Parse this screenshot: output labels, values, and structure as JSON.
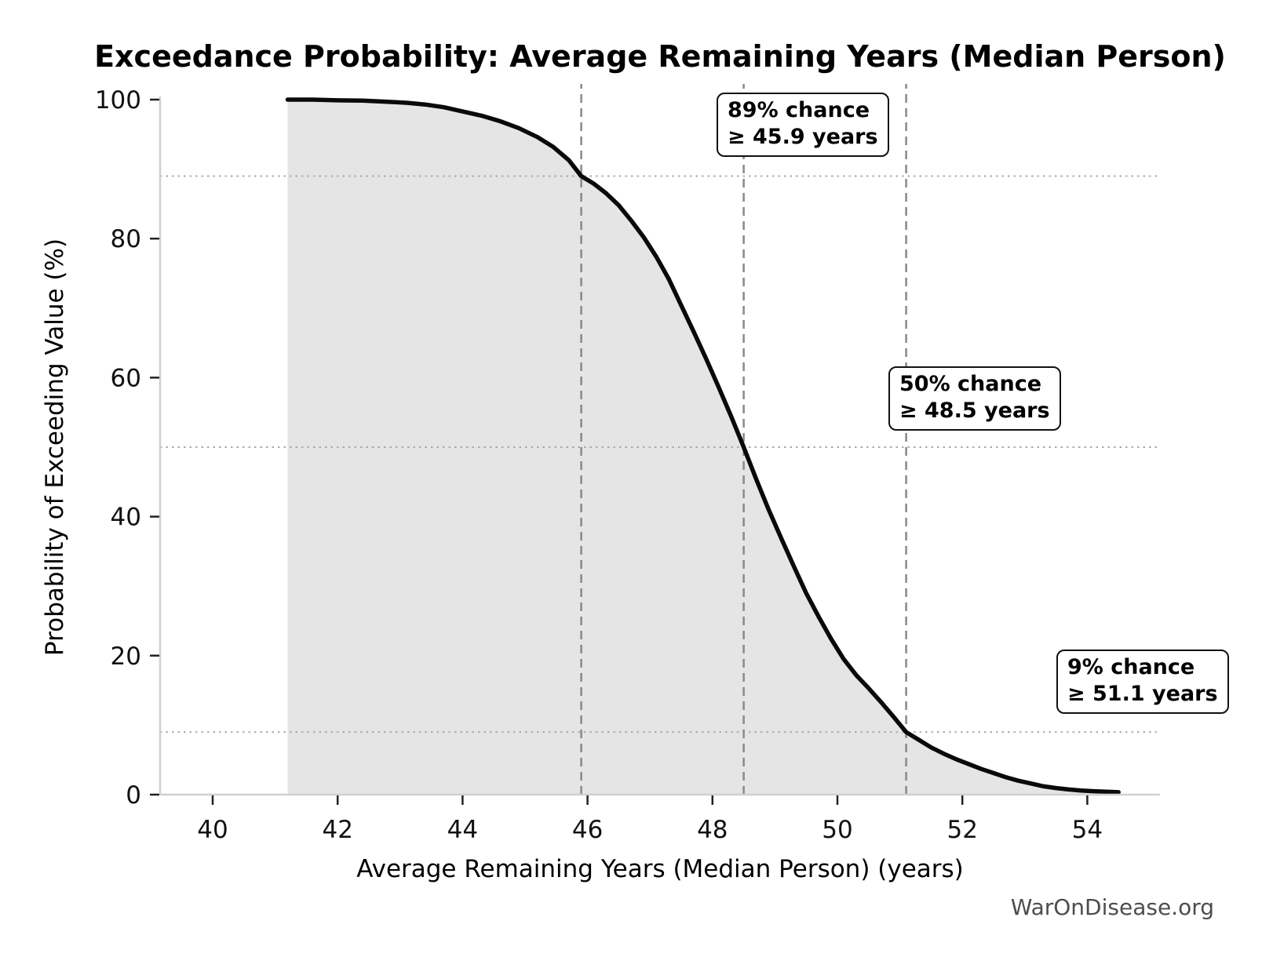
{
  "title": "Exceedance Probability: Average Remaining Years (Median Person)",
  "watermark": "WarOnDisease.org",
  "chart_data": {
    "type": "area",
    "title": "Exceedance Probability: Average Remaining Years (Median Person)",
    "xlabel": "Average Remaining Years (Median Person) (years)",
    "ylabel": "Probability of Exceeding Value (%)",
    "xlim": [
      39.16,
      55.16
    ],
    "ylim": [
      0,
      100
    ],
    "x_ticks": [
      "40",
      "42",
      "44",
      "46",
      "48",
      "50",
      "52",
      "54"
    ],
    "x_tick_values": [
      40,
      42,
      44,
      46,
      48,
      50,
      52,
      54
    ],
    "y_ticks": [
      "0",
      "20",
      "40",
      "60",
      "80",
      "100"
    ],
    "y_tick_values": [
      0,
      20,
      40,
      60,
      80,
      100
    ],
    "legend": "none",
    "grid": "off",
    "curve": [
      [
        41.2,
        100
      ],
      [
        41.6,
        100
      ],
      [
        42.0,
        99.9
      ],
      [
        42.4,
        99.85
      ],
      [
        42.8,
        99.7
      ],
      [
        43.1,
        99.55
      ],
      [
        43.4,
        99.3
      ],
      [
        43.7,
        98.9
      ],
      [
        44.0,
        98.3
      ],
      [
        44.3,
        97.7
      ],
      [
        44.6,
        96.9
      ],
      [
        44.9,
        95.9
      ],
      [
        45.2,
        94.6
      ],
      [
        45.45,
        93.2
      ],
      [
        45.7,
        91.3
      ],
      [
        45.9,
        89.0
      ],
      [
        46.1,
        87.9
      ],
      [
        46.3,
        86.5
      ],
      [
        46.5,
        84.8
      ],
      [
        46.7,
        82.6
      ],
      [
        46.9,
        80.2
      ],
      [
        47.1,
        77.4
      ],
      [
        47.3,
        74.2
      ],
      [
        47.5,
        70.4
      ],
      [
        47.7,
        66.6
      ],
      [
        47.9,
        62.7
      ],
      [
        48.1,
        58.6
      ],
      [
        48.3,
        54.4
      ],
      [
        48.5,
        50.0
      ],
      [
        48.7,
        45.4
      ],
      [
        48.9,
        41.0
      ],
      [
        49.1,
        36.9
      ],
      [
        49.3,
        32.9
      ],
      [
        49.5,
        29.0
      ],
      [
        49.7,
        25.6
      ],
      [
        49.9,
        22.4
      ],
      [
        50.1,
        19.5
      ],
      [
        50.3,
        17.2
      ],
      [
        50.5,
        15.3
      ],
      [
        50.7,
        13.3
      ],
      [
        50.9,
        11.2
      ],
      [
        51.1,
        9.0
      ],
      [
        51.3,
        7.9
      ],
      [
        51.5,
        6.8
      ],
      [
        51.7,
        5.9
      ],
      [
        51.9,
        5.1
      ],
      [
        52.1,
        4.4
      ],
      [
        52.3,
        3.7
      ],
      [
        52.5,
        3.1
      ],
      [
        52.7,
        2.5
      ],
      [
        52.9,
        2.0
      ],
      [
        53.1,
        1.6
      ],
      [
        53.3,
        1.2
      ],
      [
        53.5,
        0.95
      ],
      [
        53.7,
        0.75
      ],
      [
        53.9,
        0.6
      ],
      [
        54.1,
        0.5
      ],
      [
        54.3,
        0.42
      ],
      [
        54.5,
        0.35
      ]
    ],
    "reference_lines": {
      "vertical_dashed_x": [
        45.9,
        48.5,
        51.1
      ],
      "horizontal_dotted_y": [
        89,
        50,
        9
      ]
    },
    "annotations": [
      {
        "line1": "89% chance",
        "line2": "≥ 45.9 years",
        "x": 45.9,
        "y": 89
      },
      {
        "line1": "50% chance",
        "line2": "≥ 48.5 years",
        "x": 48.5,
        "y": 50
      },
      {
        "line1": "9% chance",
        "line2": "≥ 51.1 years",
        "x": 51.1,
        "y": 9
      }
    ],
    "colors": {
      "curve": "#0a0a0a",
      "fill": "#e5e5e5",
      "dashed_line": "#898989",
      "dotted_line": "#aaaaaa",
      "spine": "#d0d0d0",
      "tick": "#222222",
      "tick_label": "#111111",
      "watermark": "#4d4d4d"
    }
  }
}
